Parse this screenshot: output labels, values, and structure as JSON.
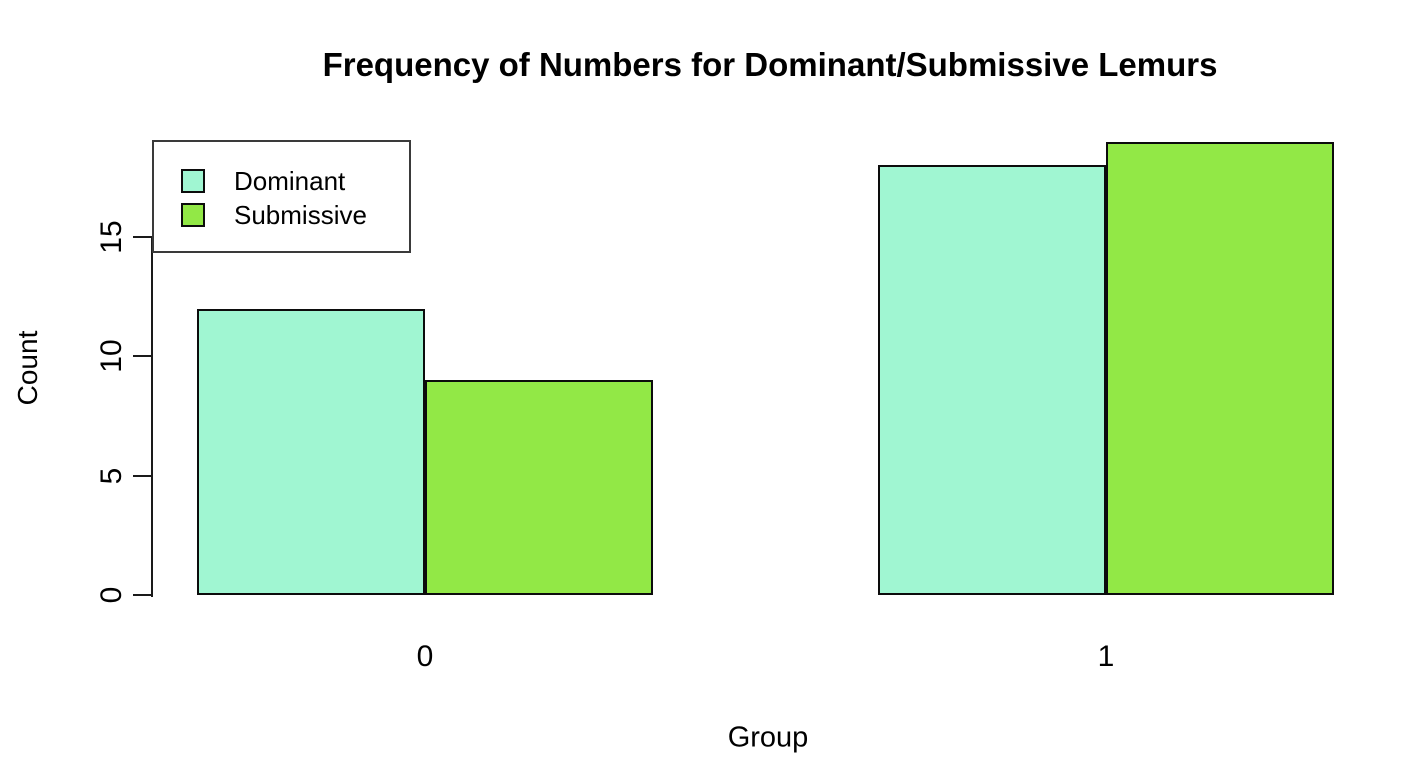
{
  "title": "Frequency of Numbers for Dominant/Submissive Lemurs",
  "chart_data": {
    "type": "bar",
    "title": "Frequency of Numbers for Dominant/Submissive Lemurs",
    "xlabel": "Group",
    "ylabel": "Count",
    "categories": [
      "0",
      "1"
    ],
    "series": [
      {
        "name": "Dominant",
        "color": "#A0F6D2",
        "values": [
          12,
          18
        ]
      },
      {
        "name": "Submissive",
        "color": "#92E846",
        "values": [
          9,
          19
        ]
      }
    ],
    "yticks": [
      0,
      5,
      10,
      15
    ],
    "ylim": [
      0,
      15
    ],
    "grid": false,
    "legend_position": "top-left",
    "bar_border_color": "#0c0c0c",
    "background": "#FFFFFF"
  }
}
